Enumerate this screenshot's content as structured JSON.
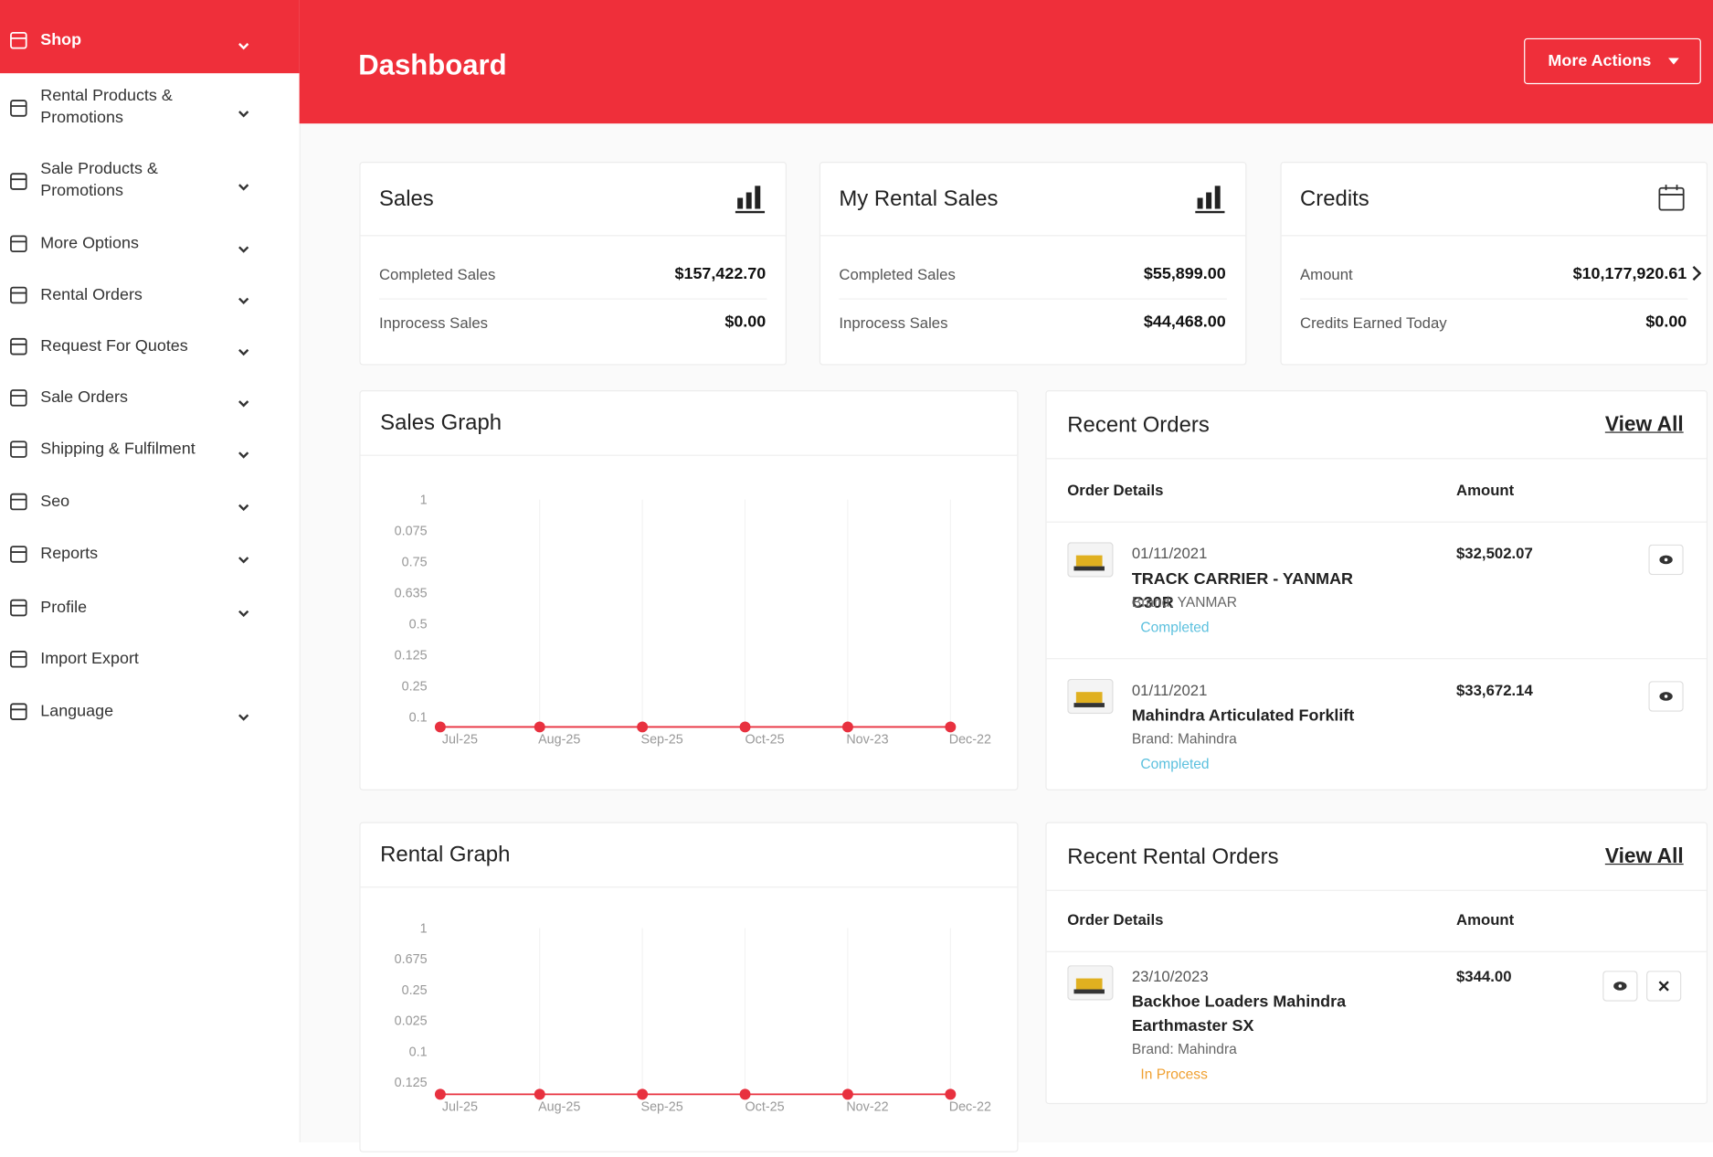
{
  "sidebar": {
    "items": [
      {
        "label": "Shop",
        "expandable": true
      },
      {
        "label": "Rental Products & Promotions",
        "expandable": true
      },
      {
        "label": "Sale Products & Promotions",
        "expandable": true
      },
      {
        "label": "More Options",
        "expandable": true
      },
      {
        "label": "Rental Orders",
        "expandable": true
      },
      {
        "label": "Request For Quotes",
        "expandable": true
      },
      {
        "label": "Sale Orders",
        "expandable": true
      },
      {
        "label": "Shipping & Fulfilment",
        "expandable": true
      },
      {
        "label": "Seo",
        "expandable": true
      },
      {
        "label": "Reports",
        "expandable": true
      },
      {
        "label": "Profile",
        "expandable": true
      },
      {
        "label": "Import Export",
        "expandable": false
      },
      {
        "label": "Language",
        "expandable": true
      }
    ]
  },
  "header": {
    "title": "Dashboard",
    "action": "More Actions"
  },
  "cards": [
    {
      "title": "Sales",
      "rows": [
        {
          "label": "Completed Sales",
          "value": "$157,422.70"
        },
        {
          "label": "Inprocess Sales",
          "value": "$0.00"
        }
      ]
    },
    {
      "title": "My Rental Sales",
      "rows": [
        {
          "label": "Completed Sales",
          "value": "$55,899.00"
        },
        {
          "label": "Inprocess Sales",
          "value": "$44,468.00"
        }
      ]
    },
    {
      "title": "Credits",
      "rows": [
        {
          "label": "Amount",
          "value": "$10,177,920.61"
        },
        {
          "label": "Credits Earned Today",
          "value": "$0.00"
        }
      ]
    }
  ],
  "sales_graph": {
    "title": "Sales Graph",
    "y_labels": [
      "1",
      "0.075",
      "0.75",
      "0.635",
      "0.5",
      "0.125",
      "0.25",
      "0.1"
    ],
    "categories": [
      "Jul-25",
      "Aug-25",
      "Sep-25",
      "Oct-25",
      "Nov-23",
      "Dec-22"
    ],
    "values": [
      0,
      0,
      0,
      0,
      0,
      0
    ],
    "color": "#e8313f"
  },
  "rental_graph": {
    "title": "Rental Graph",
    "y_labels": [
      "1",
      "0.675",
      "0.25",
      "0.025",
      "0.1",
      "0.125"
    ],
    "categories": [
      "Jul-25",
      "Aug-25",
      "Sep-25",
      "Oct-25",
      "Nov-22",
      "Dec-22"
    ],
    "values": [
      0,
      0,
      0,
      0,
      0,
      0
    ],
    "color": "#e8313f"
  },
  "recent_orders": {
    "title": "Recent Orders",
    "view_all": "View All",
    "columns": [
      "Order Details",
      "Amount"
    ],
    "orders": [
      {
        "date": "01/11/2021",
        "name": "TRACK CARRIER - YANMAR C30R",
        "brand": "Brand: YANMAR",
        "status": "Completed",
        "amount": "$32,502.07"
      },
      {
        "date": "01/11/2021",
        "name": "Mahindra Articulated Forklift",
        "brand": "Brand: Mahindra",
        "status": "Completed",
        "amount": "$33,672.14"
      }
    ]
  },
  "recent_rental_orders": {
    "title": "Recent Rental Orders",
    "view_all": "View All",
    "columns": [
      "Order Details",
      "Amount"
    ],
    "orders": [
      {
        "date": "23/10/2023",
        "name": "Backhoe Loaders Mahindra Earthmaster SX",
        "brand": "Brand: Mahindra",
        "status": "In Process",
        "amount": "$344.00"
      }
    ]
  }
}
